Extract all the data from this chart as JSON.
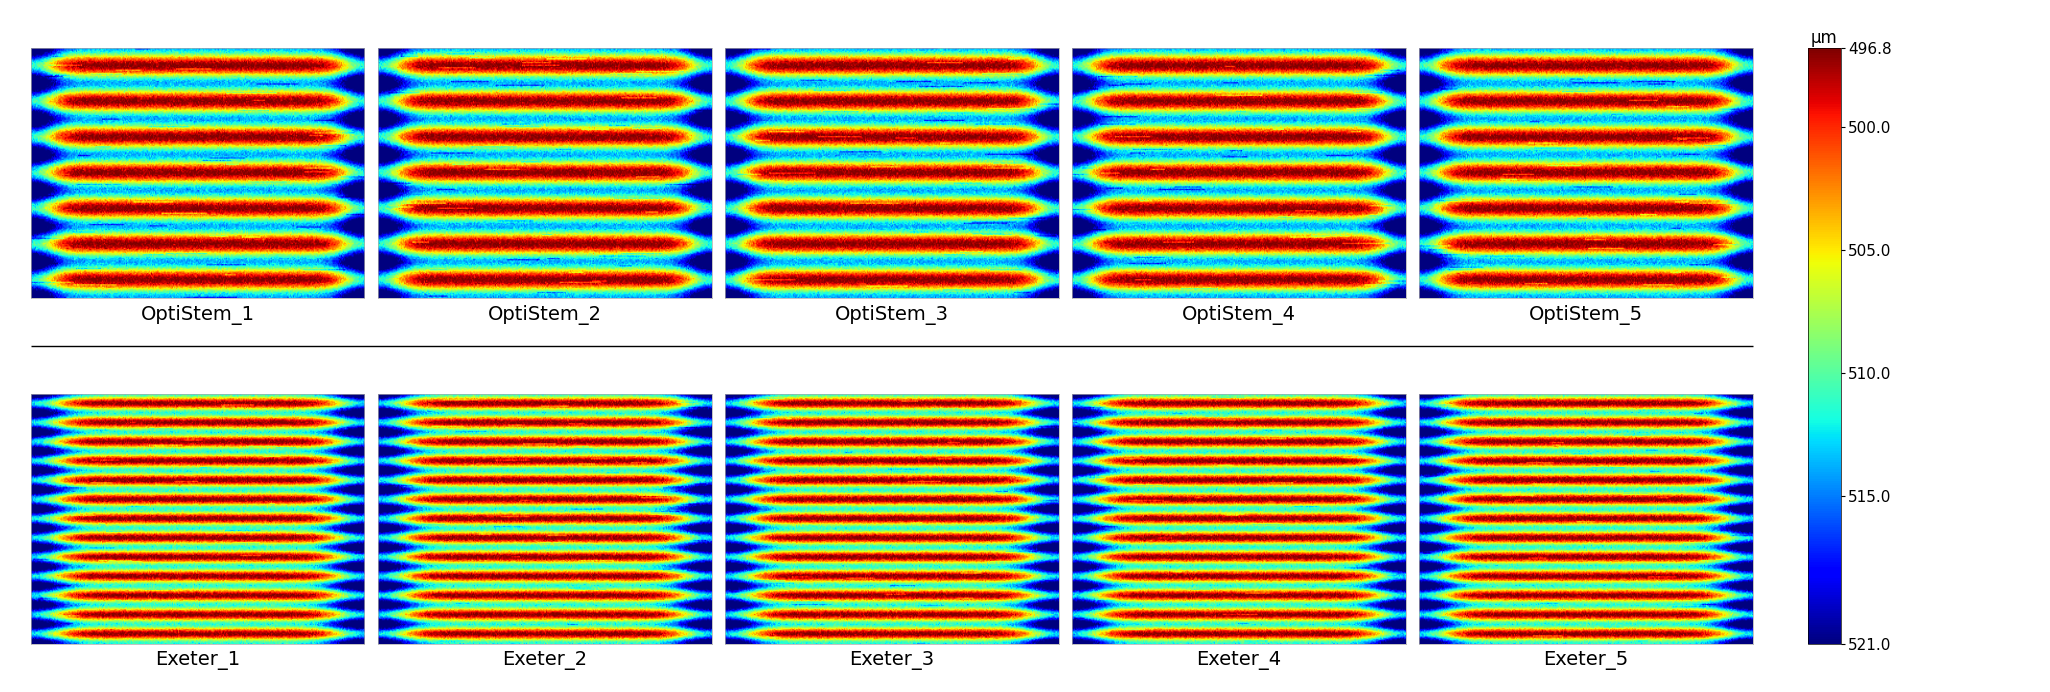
{
  "optistem_labels": [
    "OptiStem_1",
    "OptiStem_2",
    "OptiStem_3",
    "OptiStem_4",
    "OptiStem_5"
  ],
  "exeter_labels": [
    "Exeter_1",
    "Exeter_2",
    "Exeter_3",
    "Exeter_4",
    "Exeter_5"
  ],
  "colorbar_label": "μm",
  "colorbar_ticks": [
    496.8,
    500.0,
    505.0,
    510.0,
    515.0,
    521.0
  ],
  "colorbar_vmin": 496.8,
  "colorbar_vmax": 521.0,
  "optistem_n_bands": 7,
  "exeter_n_bands": 13,
  "label_fontsize": 14,
  "cbar_fontsize": 11,
  "background_color": "#ffffff",
  "separator_color": "#000000"
}
